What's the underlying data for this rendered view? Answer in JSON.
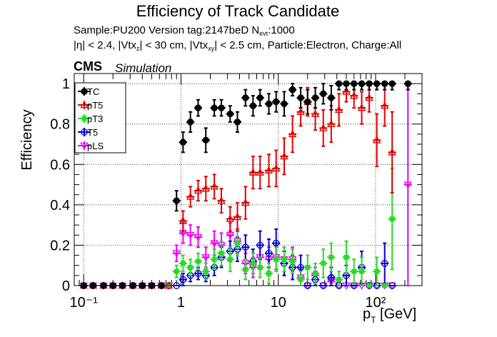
{
  "header": {
    "title": "Efficiency of Track Candidate",
    "sample_text": "Sample:PU200   Version tag:2147beD  N",
    "sample_sub": "evt",
    "sample_tail": ":1000",
    "cuts_1": "|η| < 2.4, |Vtx",
    "cuts_1_sub": "z",
    "cuts_2": "| < 30 cm, |Vtx",
    "cuts_2_sub": "xy",
    "cuts_3": "| < 2.5 cm, Particle:Electron, Charge:All",
    "cms": "CMS",
    "simulation": "Simulation"
  },
  "chart_data": {
    "type": "scatter",
    "title": "Efficiency of Track Candidate",
    "xlabel": "p_T [GeV]",
    "ylabel": "Efficiency",
    "xscale": "log",
    "xlim": [
      0.08,
      300
    ],
    "ylim": [
      0,
      1.05
    ],
    "grid": true,
    "legend_position": "top-left",
    "yticks": [
      "0",
      "0.2",
      "0.4",
      "0.6",
      "0.8",
      "1"
    ],
    "xticks": [
      "10⁻¹",
      "1",
      "10",
      "10²"
    ],
    "series": [
      {
        "name": "TC",
        "color": "#000000",
        "marker": "filled-circle",
        "points": [
          {
            "x": 0.1,
            "y": 0.0
          },
          {
            "x": 0.125,
            "y": 0.0
          },
          {
            "x": 0.16,
            "y": 0.0
          },
          {
            "x": 0.2,
            "y": 0.0
          },
          {
            "x": 0.25,
            "y": 0.0
          },
          {
            "x": 0.32,
            "y": 0.0
          },
          {
            "x": 0.4,
            "y": 0.0
          },
          {
            "x": 0.5,
            "y": 0.0
          },
          {
            "x": 0.63,
            "y": 0.0
          },
          {
            "x": 0.9,
            "y": 0.42,
            "err": 0.05
          },
          {
            "x": 1.05,
            "y": 0.71,
            "err": 0.05
          },
          {
            "x": 1.25,
            "y": 0.81,
            "err": 0.05
          },
          {
            "x": 1.5,
            "y": 0.88,
            "err": 0.04
          },
          {
            "x": 1.8,
            "y": 0.72,
            "err": 0.06
          },
          {
            "x": 2.2,
            "y": 0.88,
            "err": 0.04
          },
          {
            "x": 2.6,
            "y": 0.88,
            "err": 0.04
          },
          {
            "x": 3.2,
            "y": 0.85,
            "err": 0.04
          },
          {
            "x": 3.8,
            "y": 0.81,
            "err": 0.05
          },
          {
            "x": 4.6,
            "y": 0.93,
            "err": 0.04
          },
          {
            "x": 5.5,
            "y": 0.89,
            "err": 0.05
          },
          {
            "x": 6.5,
            "y": 0.93,
            "err": 0.04
          },
          {
            "x": 8.0,
            "y": 0.9,
            "err": 0.05
          },
          {
            "x": 9.5,
            "y": 0.91,
            "err": 0.05
          },
          {
            "x": 11.5,
            "y": 0.9,
            "err": 0.06
          },
          {
            "x": 14.0,
            "y": 0.97,
            "err": 0.03
          },
          {
            "x": 17.0,
            "y": 0.93,
            "err": 0.05
          },
          {
            "x": 20.0,
            "y": 0.91,
            "err": 0.06
          },
          {
            "x": 24.0,
            "y": 0.93,
            "err": 0.05
          },
          {
            "x": 29.0,
            "y": 0.95,
            "err": 0.05
          },
          {
            "x": 35.0,
            "y": 0.93,
            "err": 0.06
          },
          {
            "x": 42.0,
            "y": 1.0,
            "err": 0.03
          },
          {
            "x": 50.0,
            "y": 1.0,
            "err": 0.03
          },
          {
            "x": 60.0,
            "y": 1.0,
            "err": 0.03
          },
          {
            "x": 72.0,
            "y": 1.0,
            "err": 0.03
          },
          {
            "x": 86.0,
            "y": 1.0,
            "err": 0.03
          },
          {
            "x": 103.0,
            "y": 1.0,
            "err": 0.03
          },
          {
            "x": 124.0,
            "y": 1.0,
            "err": 0.03
          },
          {
            "x": 148.0,
            "y": 1.0,
            "err": 0.03
          },
          {
            "x": 215.0,
            "y": 1.0,
            "err": 0.03
          }
        ]
      },
      {
        "name": "pT5",
        "color": "#e00000",
        "marker": "open-triangle",
        "points": [
          {
            "x": 0.1,
            "y": 0.0
          },
          {
            "x": 0.125,
            "y": 0.0
          },
          {
            "x": 0.16,
            "y": 0.0
          },
          {
            "x": 0.2,
            "y": 0.0
          },
          {
            "x": 0.25,
            "y": 0.0
          },
          {
            "x": 0.32,
            "y": 0.0
          },
          {
            "x": 0.4,
            "y": 0.0
          },
          {
            "x": 0.5,
            "y": 0.0
          },
          {
            "x": 0.63,
            "y": 0.0
          },
          {
            "x": 0.75,
            "y": 0.0
          },
          {
            "x": 1.05,
            "y": 0.32,
            "err": 0.05
          },
          {
            "x": 1.25,
            "y": 0.44,
            "err": 0.05
          },
          {
            "x": 1.5,
            "y": 0.47,
            "err": 0.05
          },
          {
            "x": 1.8,
            "y": 0.48,
            "err": 0.06
          },
          {
            "x": 2.2,
            "y": 0.49,
            "err": 0.06
          },
          {
            "x": 2.6,
            "y": 0.42,
            "err": 0.06
          },
          {
            "x": 3.2,
            "y": 0.33,
            "err": 0.06
          },
          {
            "x": 3.8,
            "y": 0.34,
            "err": 0.07
          },
          {
            "x": 4.6,
            "y": 0.41,
            "err": 0.08
          },
          {
            "x": 5.5,
            "y": 0.56,
            "err": 0.08
          },
          {
            "x": 6.5,
            "y": 0.56,
            "err": 0.08
          },
          {
            "x": 8.0,
            "y": 0.57,
            "err": 0.08
          },
          {
            "x": 9.5,
            "y": 0.58,
            "err": 0.09
          },
          {
            "x": 11.5,
            "y": 0.64,
            "err": 0.09
          },
          {
            "x": 14.0,
            "y": 0.75,
            "err": 0.09
          },
          {
            "x": 17.0,
            "y": 0.86,
            "err": 0.07
          },
          {
            "x": 20.0,
            "y": 0.91,
            "err": 0.07
          },
          {
            "x": 24.0,
            "y": 0.85,
            "err": 0.08
          },
          {
            "x": 29.0,
            "y": 0.78,
            "err": 0.09
          },
          {
            "x": 35.0,
            "y": 0.8,
            "err": 0.09
          },
          {
            "x": 42.0,
            "y": 0.87,
            "err": 0.08
          },
          {
            "x": 50.0,
            "y": 0.96,
            "err": 0.05
          },
          {
            "x": 60.0,
            "y": 0.94,
            "err": 0.06
          },
          {
            "x": 72.0,
            "y": 0.88,
            "err": 0.08
          },
          {
            "x": 86.0,
            "y": 0.93,
            "err": 0.07
          },
          {
            "x": 103.0,
            "y": 0.72,
            "err": 0.13
          },
          {
            "x": 124.0,
            "y": 0.89,
            "err": 0.1
          },
          {
            "x": 148.0,
            "y": 0.66,
            "err": 0.2
          }
        ]
      },
      {
        "name": "pT3",
        "color": "#22dd22",
        "marker": "filled-square",
        "points": [
          {
            "x": 0.1,
            "y": 0.0
          },
          {
            "x": 0.125,
            "y": 0.0
          },
          {
            "x": 0.16,
            "y": 0.0
          },
          {
            "x": 0.2,
            "y": 0.0
          },
          {
            "x": 0.25,
            "y": 0.0
          },
          {
            "x": 0.32,
            "y": 0.0
          },
          {
            "x": 0.4,
            "y": 0.0
          },
          {
            "x": 0.5,
            "y": 0.0
          },
          {
            "x": 0.63,
            "y": 0.0
          },
          {
            "x": 0.75,
            "y": 0.0
          },
          {
            "x": 0.9,
            "y": 0.07,
            "err": 0.03
          },
          {
            "x": 1.05,
            "y": 0.11,
            "err": 0.04
          },
          {
            "x": 1.25,
            "y": 0.09,
            "err": 0.04
          },
          {
            "x": 1.5,
            "y": 0.12,
            "err": 0.04
          },
          {
            "x": 1.8,
            "y": 0.07,
            "err": 0.04
          },
          {
            "x": 2.2,
            "y": 0.13,
            "err": 0.05
          },
          {
            "x": 2.6,
            "y": 0.16,
            "err": 0.06
          },
          {
            "x": 3.2,
            "y": 0.13,
            "err": 0.06
          },
          {
            "x": 3.8,
            "y": 0.21,
            "err": 0.06
          },
          {
            "x": 4.6,
            "y": 0.08,
            "err": 0.05
          },
          {
            "x": 5.5,
            "y": 0.11,
            "err": 0.05
          },
          {
            "x": 6.5,
            "y": 0.09,
            "err": 0.05
          },
          {
            "x": 8.0,
            "y": 0.06,
            "err": 0.05
          },
          {
            "x": 9.5,
            "y": 0.13,
            "err": 0.06
          },
          {
            "x": 11.5,
            "y": 0.13,
            "err": 0.06
          },
          {
            "x": 14.0,
            "y": 0.12,
            "err": 0.06
          },
          {
            "x": 17.0,
            "y": 0.03,
            "err": 0.04
          },
          {
            "x": 20.0,
            "y": 0.09,
            "err": 0.06
          },
          {
            "x": 24.0,
            "y": 0.06,
            "err": 0.05
          },
          {
            "x": 29.0,
            "y": 0.11,
            "err": 0.07
          },
          {
            "x": 35.0,
            "y": 0.14,
            "err": 0.07
          },
          {
            "x": 42.0,
            "y": 0.03,
            "err": 0.04
          },
          {
            "x": 50.0,
            "y": 0.14,
            "err": 0.08
          },
          {
            "x": 60.0,
            "y": 0.07,
            "err": 0.06
          },
          {
            "x": 72.0,
            "y": 0.07,
            "err": 0.07
          },
          {
            "x": 86.0,
            "y": 0.0
          },
          {
            "x": 103.0,
            "y": 0.07,
            "err": 0.07
          },
          {
            "x": 124.0,
            "y": 0.0
          },
          {
            "x": 148.0,
            "y": 0.33,
            "err": 0.25
          }
        ]
      },
      {
        "name": "T5",
        "color": "#0000cc",
        "marker": "open-circle",
        "points": [
          {
            "x": 0.1,
            "y": 0.0
          },
          {
            "x": 0.125,
            "y": 0.0
          },
          {
            "x": 0.16,
            "y": 0.0
          },
          {
            "x": 0.2,
            "y": 0.0
          },
          {
            "x": 0.25,
            "y": 0.0
          },
          {
            "x": 0.32,
            "y": 0.0
          },
          {
            "x": 0.4,
            "y": 0.0
          },
          {
            "x": 0.5,
            "y": 0.0
          },
          {
            "x": 0.63,
            "y": 0.0
          },
          {
            "x": 0.75,
            "y": 0.0
          },
          {
            "x": 0.9,
            "y": 0.0
          },
          {
            "x": 1.05,
            "y": 0.03,
            "err": 0.03
          },
          {
            "x": 1.25,
            "y": 0.05,
            "err": 0.03
          },
          {
            "x": 1.5,
            "y": 0.06,
            "err": 0.03
          },
          {
            "x": 1.8,
            "y": 0.05,
            "err": 0.03
          },
          {
            "x": 2.2,
            "y": 0.09,
            "err": 0.04
          },
          {
            "x": 2.6,
            "y": 0.14,
            "err": 0.05
          },
          {
            "x": 3.2,
            "y": 0.17,
            "err": 0.05
          },
          {
            "x": 3.8,
            "y": 0.18,
            "err": 0.06
          },
          {
            "x": 4.6,
            "y": 0.19,
            "err": 0.06
          },
          {
            "x": 5.5,
            "y": 0.12,
            "err": 0.06
          },
          {
            "x": 6.5,
            "y": 0.2,
            "err": 0.07
          },
          {
            "x": 8.0,
            "y": 0.16,
            "err": 0.07
          },
          {
            "x": 9.5,
            "y": 0.21,
            "err": 0.07
          },
          {
            "x": 11.5,
            "y": 0.11,
            "err": 0.06
          },
          {
            "x": 14.0,
            "y": 0.09,
            "err": 0.06
          },
          {
            "x": 17.0,
            "y": 0.09,
            "err": 0.06
          },
          {
            "x": 20.0,
            "y": 0.0
          },
          {
            "x": 24.0,
            "y": 0.03,
            "err": 0.04
          },
          {
            "x": 29.0,
            "y": 0.0
          },
          {
            "x": 35.0,
            "y": 0.04,
            "err": 0.05
          },
          {
            "x": 42.0,
            "y": 0.0
          },
          {
            "x": 50.0,
            "y": 0.05,
            "err": 0.05
          },
          {
            "x": 60.0,
            "y": 0.0
          },
          {
            "x": 72.0,
            "y": 0.09,
            "err": 0.08
          },
          {
            "x": 86.0,
            "y": 0.0
          },
          {
            "x": 103.0,
            "y": 0.0
          },
          {
            "x": 124.0,
            "y": 0.11,
            "err": 0.1
          },
          {
            "x": 148.0,
            "y": 0.0
          }
        ]
      },
      {
        "name": "pLS",
        "color": "#ee00ee",
        "marker": "open-triangle-down",
        "points": [
          {
            "x": 0.1,
            "y": 0.0
          },
          {
            "x": 0.125,
            "y": 0.0
          },
          {
            "x": 0.16,
            "y": 0.0
          },
          {
            "x": 0.2,
            "y": 0.0
          },
          {
            "x": 0.25,
            "y": 0.0
          },
          {
            "x": 0.32,
            "y": 0.0
          },
          {
            "x": 0.4,
            "y": 0.0
          },
          {
            "x": 0.5,
            "y": 0.0
          },
          {
            "x": 0.63,
            "y": 0.0
          },
          {
            "x": 0.75,
            "y": 0.0
          },
          {
            "x": 0.9,
            "y": 0.16,
            "err": 0.04
          },
          {
            "x": 1.05,
            "y": 0.26,
            "err": 0.05
          },
          {
            "x": 1.25,
            "y": 0.25,
            "err": 0.05
          },
          {
            "x": 1.5,
            "y": 0.24,
            "err": 0.05
          },
          {
            "x": 1.8,
            "y": 0.14,
            "err": 0.05
          },
          {
            "x": 2.2,
            "y": 0.21,
            "err": 0.06
          },
          {
            "x": 2.6,
            "y": 0.2,
            "err": 0.06
          },
          {
            "x": 3.2,
            "y": 0.25,
            "err": 0.06
          },
          {
            "x": 3.8,
            "y": 0.22,
            "err": 0.06
          },
          {
            "x": 4.6,
            "y": 0.11,
            "err": 0.05
          },
          {
            "x": 5.5,
            "y": 0.09,
            "err": 0.05
          },
          {
            "x": 6.5,
            "y": 0.14,
            "err": 0.06
          },
          {
            "x": 8.0,
            "y": 0.13,
            "err": 0.06
          },
          {
            "x": 9.5,
            "y": 0.14,
            "err": 0.06
          },
          {
            "x": 11.5,
            "y": 0.13,
            "err": 0.06
          },
          {
            "x": 14.0,
            "y": 0.13,
            "err": 0.06
          },
          {
            "x": 17.0,
            "y": 0.04,
            "err": 0.04
          },
          {
            "x": 20.0,
            "y": 0.0
          },
          {
            "x": 24.0,
            "y": 0.05,
            "err": 0.04
          },
          {
            "x": 29.0,
            "y": 0.0
          },
          {
            "x": 35.0,
            "y": 0.02,
            "err": 0.03
          },
          {
            "x": 42.0,
            "y": 0.0
          },
          {
            "x": 50.0,
            "y": 0.0
          },
          {
            "x": 60.0,
            "y": 0.0
          },
          {
            "x": 72.0,
            "y": 0.0
          },
          {
            "x": 86.0,
            "y": 0.0
          },
          {
            "x": 103.0,
            "y": 0.0
          },
          {
            "x": 124.0,
            "y": 0.0
          },
          {
            "x": 148.0,
            "y": 0.0
          },
          {
            "x": 215.0,
            "y": 0.5,
            "err": 0.5
          }
        ]
      }
    ]
  }
}
